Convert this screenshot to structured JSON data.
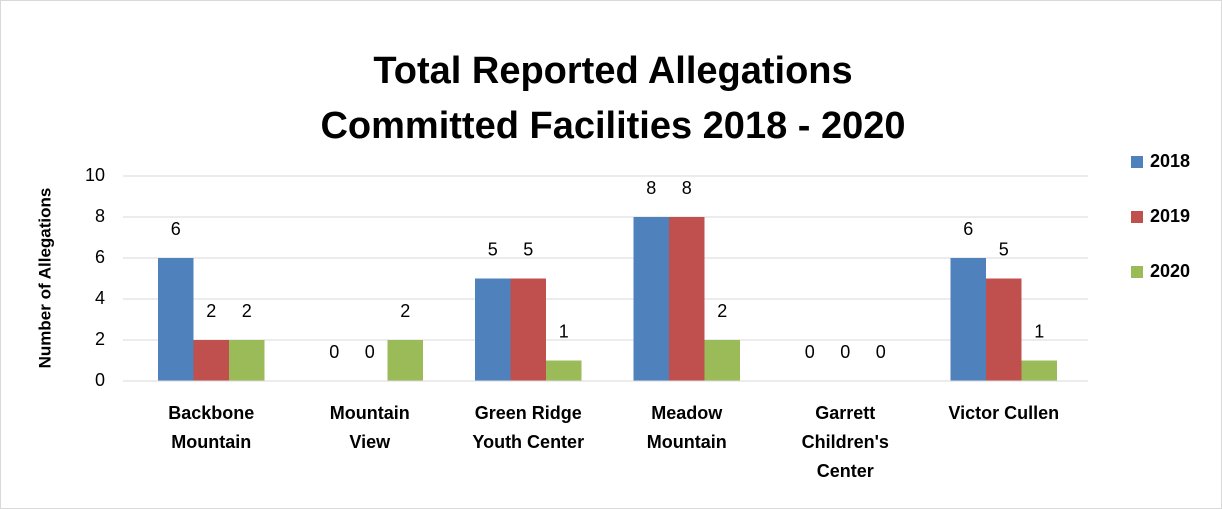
{
  "chart_data": {
    "type": "bar",
    "title": [
      "Total Reported Allegations",
      "Committed Facilities 2018 - 2020"
    ],
    "y_label": "Number of Allegations",
    "categories": [
      "Backbone Mountain",
      "Mountain View",
      "Green Ridge Youth Center",
      "Meadow Mountain",
      "Garrett Children's Center",
      "Victor Cullen"
    ],
    "series": [
      {
        "name": "2018",
        "color": "#4f81bd",
        "values": [
          6,
          0,
          5,
          8,
          0,
          6
        ]
      },
      {
        "name": "2019",
        "color": "#c0504d",
        "values": [
          2,
          0,
          5,
          8,
          0,
          5
        ]
      },
      {
        "name": "2020",
        "color": "#9bbb59",
        "values": [
          2,
          2,
          1,
          2,
          0,
          1
        ]
      }
    ],
    "ylim": [
      0,
      10
    ],
    "yticks": [
      0,
      2,
      4,
      6,
      8,
      10
    ],
    "grid": true,
    "legend": "right"
  }
}
